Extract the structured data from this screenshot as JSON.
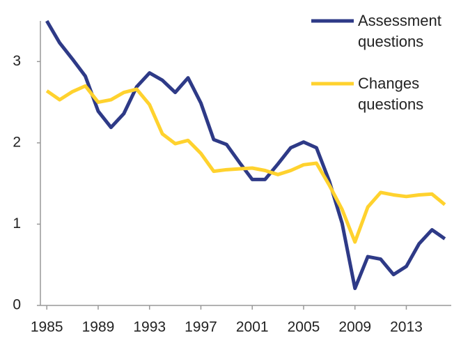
{
  "chart_data": {
    "type": "line",
    "x": [
      1985,
      1986,
      1987,
      1988,
      1989,
      1990,
      1991,
      1992,
      1993,
      1994,
      1995,
      1996,
      1997,
      1998,
      1999,
      2000,
      2001,
      2002,
      2003,
      2004,
      2005,
      2006,
      2007,
      2008,
      2009,
      2010,
      2011,
      2012,
      2013,
      2014,
      2015,
      2016
    ],
    "series": [
      {
        "name": "Assessment questions",
        "color": "#2e3a87",
        "values": [
          3.5,
          3.23,
          3.03,
          2.82,
          2.39,
          2.19,
          2.36,
          2.69,
          2.86,
          2.77,
          2.62,
          2.8,
          2.49,
          2.04,
          1.98,
          1.76,
          1.55,
          1.55,
          1.74,
          1.94,
          2.01,
          1.94,
          1.53,
          1.01,
          0.21,
          0.6,
          0.57,
          0.38,
          0.48,
          0.76,
          0.93,
          0.82
        ]
      },
      {
        "name": "Changes questions",
        "color": "#ffd22e",
        "values": [
          2.64,
          2.53,
          2.63,
          2.7,
          2.5,
          2.53,
          2.62,
          2.66,
          2.47,
          2.11,
          1.99,
          2.03,
          1.87,
          1.65,
          1.67,
          1.68,
          1.69,
          1.66,
          1.61,
          1.66,
          1.73,
          1.75,
          1.48,
          1.18,
          0.78,
          1.21,
          1.39,
          1.36,
          1.34,
          1.36,
          1.37,
          1.24
        ]
      }
    ],
    "xlim": [
      1984.5,
      2016.5
    ],
    "xticks": [
      1985,
      1989,
      1993,
      1997,
      2001,
      2005,
      2009,
      2013
    ],
    "ylim": [
      0,
      3.5
    ],
    "yticks": [
      0,
      1,
      2,
      3
    ],
    "grid": false
  }
}
